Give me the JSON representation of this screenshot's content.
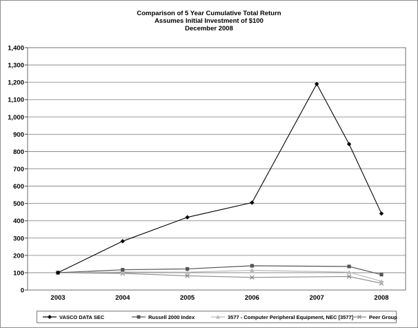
{
  "chart_data": {
    "type": "line",
    "title": [
      "Comparison of 5 Year Cumulative Total Return",
      "Assumes Initial Investment of $100",
      "December 2008"
    ],
    "xlabel": "",
    "ylabel": "",
    "ylim": [
      0,
      1400
    ],
    "yticks": [
      0,
      100,
      200,
      300,
      400,
      500,
      600,
      700,
      800,
      900,
      1000,
      1100,
      1200,
      1300,
      1400
    ],
    "ytick_labels": [
      "0",
      "100",
      "200",
      "300",
      "400",
      "500",
      "600",
      "700",
      "800",
      "900",
      "1,000",
      "1,100",
      "1,200",
      "1,300",
      "1,400"
    ],
    "x_ticks": [
      {
        "label": "2003",
        "pos": 0
      },
      {
        "label": "2004",
        "pos": 1
      },
      {
        "label": "2005",
        "pos": 2
      },
      {
        "label": "2006",
        "pos": 3
      },
      {
        "label": "2007",
        "pos": 4
      },
      {
        "label": "2008",
        "pos": 5
      }
    ],
    "x": [
      0,
      1,
      2,
      3,
      4,
      4.5,
      5
    ],
    "grid": true,
    "legend_position": "bottom",
    "series": [
      {
        "name": "VASCO DATA SEC",
        "color": "#000000",
        "marker": "diamond",
        "values": [
          100,
          282,
          420,
          505,
          1190,
          843,
          442
        ]
      },
      {
        "name": "Russell 2000 Index",
        "color": "#555555",
        "marker": "square",
        "values": [
          100,
          117,
          122,
          140,
          null,
          136,
          89
        ]
      },
      {
        "name": "3577 - Computer Peripheral Equipment, NEC [3577]",
        "color": "#b8b8b8",
        "marker": "triangle",
        "values": [
          100,
          104,
          103,
          114,
          null,
          103,
          50
        ]
      },
      {
        "name": "Peer Group",
        "color": "#8c8c8c",
        "marker": "x",
        "values": [
          100,
          96,
          82,
          73,
          null,
          78,
          39
        ]
      }
    ]
  }
}
